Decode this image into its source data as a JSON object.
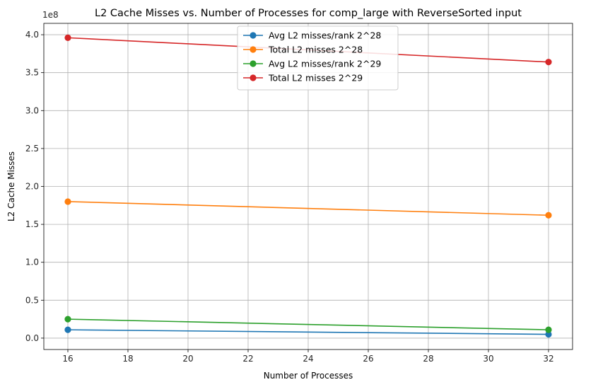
{
  "chart_data": {
    "type": "line",
    "title": "L2 Cache Misses vs. Number of Processes for comp_large with ReverseSorted input",
    "xlabel": "Number of Processes",
    "ylabel": "L2 Cache Misses",
    "y_offset_label": "1e8",
    "x": [
      16,
      32
    ],
    "xlim": [
      15.2,
      32.8
    ],
    "ylim": [
      -0.15,
      4.15
    ],
    "y_scale": 100000000,
    "xticks": [
      16,
      18,
      20,
      22,
      24,
      26,
      28,
      30,
      32
    ],
    "yticks": [
      0.0,
      0.5,
      1.0,
      1.5,
      2.0,
      2.5,
      3.0,
      3.5,
      4.0
    ],
    "ytick_labels": [
      "0.0",
      "0.5",
      "1.0",
      "1.5",
      "2.0",
      "2.5",
      "3.0",
      "3.5",
      "4.0"
    ],
    "grid": true,
    "legend_position": "top-center",
    "series": [
      {
        "name": "Avg L2 misses/rank 2^28",
        "color": "#1f77b4",
        "values": [
          0.11,
          0.05
        ]
      },
      {
        "name": "Total L2 misses 2^28",
        "color": "#ff7f0e",
        "values": [
          1.8,
          1.62
        ]
      },
      {
        "name": "Avg L2 misses/rank 2^29",
        "color": "#2ca02c",
        "values": [
          0.25,
          0.11
        ]
      },
      {
        "name": "Total L2 misses 2^29",
        "color": "#d62728",
        "values": [
          3.96,
          3.64
        ]
      }
    ]
  }
}
